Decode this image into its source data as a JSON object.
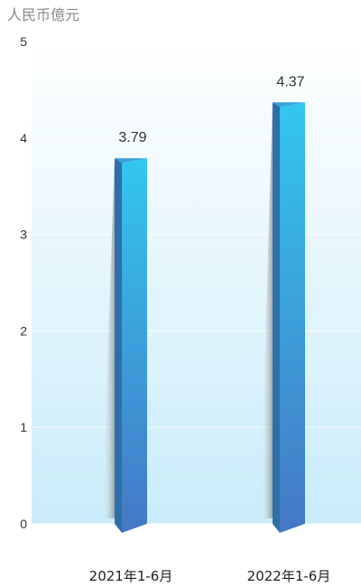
{
  "chart_data": {
    "type": "bar",
    "unit_label": "人民币億元",
    "categories": [
      "2021年1-6月",
      "2022年1-6月"
    ],
    "values": [
      3.79,
      4.37
    ],
    "value_labels": [
      "3.79",
      "4.37"
    ],
    "ylim": [
      0,
      5
    ],
    "yticks": [
      0,
      1,
      2,
      3,
      4,
      5
    ],
    "ytick_labels": [
      "0",
      "1",
      "2",
      "3",
      "4",
      "5"
    ],
    "grid": true,
    "colors": {
      "bar_top": "#33c6f0",
      "bar_bottom": "#4578c4",
      "bar_side": "#2f6fa8",
      "background_bottom": "#c9ecfa"
    }
  }
}
